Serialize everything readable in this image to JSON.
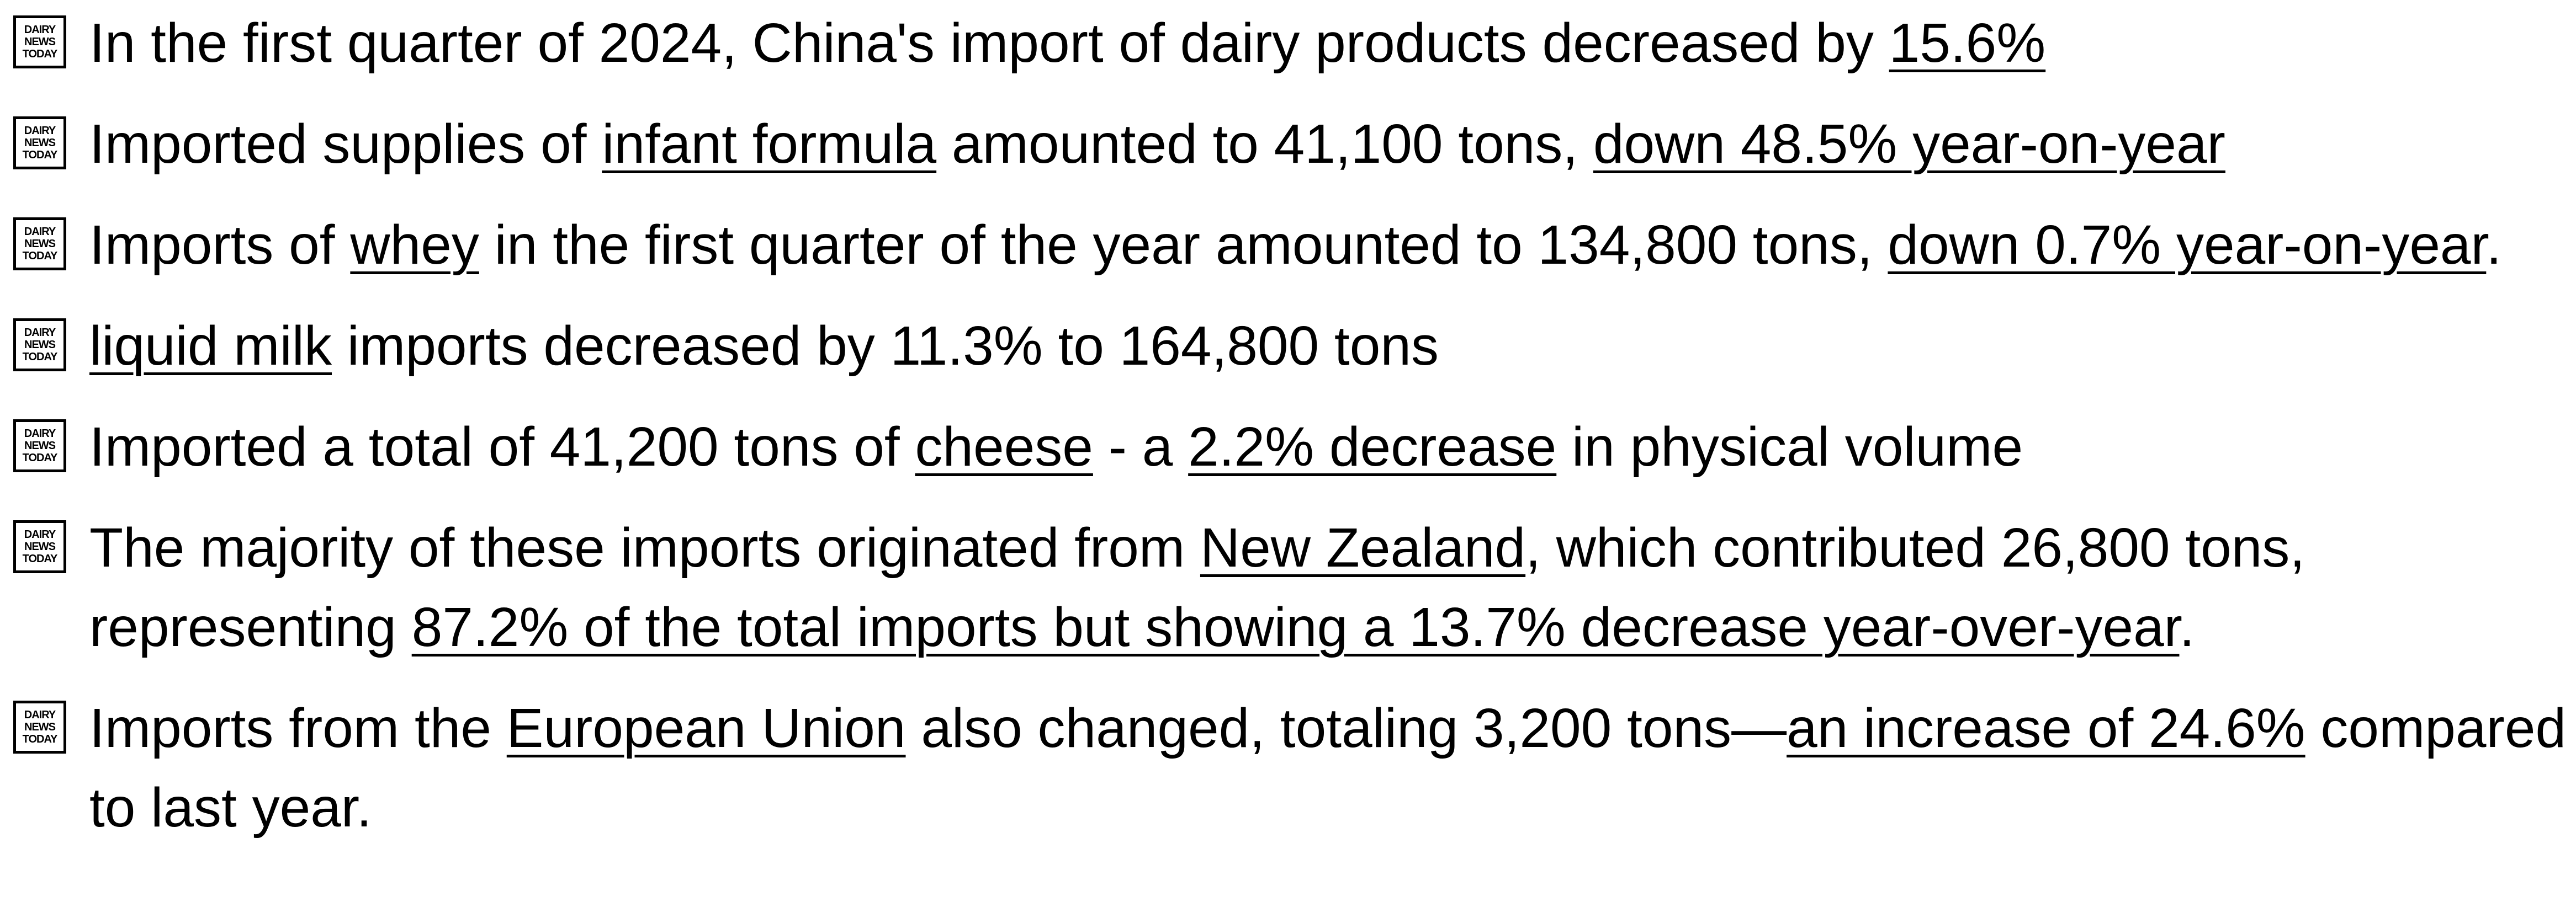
{
  "icon_text": [
    "DAIRY",
    "NEWS",
    "TODAY"
  ],
  "items": [
    {
      "segments": [
        {
          "text": "In the first quarter of 2024, China's import of dairy products decreased by ",
          "underline": false
        },
        {
          "text": "15.6%",
          "underline": true
        }
      ]
    },
    {
      "segments": [
        {
          "text": "Imported supplies of ",
          "underline": false
        },
        {
          "text": "infant formula",
          "underline": true
        },
        {
          "text": " amounted to 41,100 tons, ",
          "underline": false
        },
        {
          "text": "down 48.5% year-on-year",
          "underline": true
        }
      ]
    },
    {
      "segments": [
        {
          "text": "Imports of ",
          "underline": false
        },
        {
          "text": "whey",
          "underline": true
        },
        {
          "text": " in the first quarter of the year amounted to 134,800 tons, ",
          "underline": false
        },
        {
          "text": "down 0.7% year-on-year",
          "underline": true
        },
        {
          "text": ".",
          "underline": false
        }
      ]
    },
    {
      "segments": [
        {
          "text": "liquid milk",
          "underline": true
        },
        {
          "text": " imports decreased by 11.3% to 164,800 tons",
          "underline": false
        }
      ]
    },
    {
      "segments": [
        {
          "text": "Imported a total of 41,200 tons of ",
          "underline": false
        },
        {
          "text": "cheese",
          "underline": true
        },
        {
          "text": " - a ",
          "underline": false
        },
        {
          "text": "2.2% decrease",
          "underline": true
        },
        {
          "text": " in physical volume",
          "underline": false
        }
      ]
    },
    {
      "segments": [
        {
          "text": "The majority of these imports originated from ",
          "underline": false
        },
        {
          "text": "New Zealand",
          "underline": true
        },
        {
          "text": ", which contributed 26,800 tons, representing ",
          "underline": false
        },
        {
          "text": "87.2% of the total imports but showing a 13.7% decrease year-over-year",
          "underline": true
        },
        {
          "text": ".",
          "underline": false
        }
      ]
    },
    {
      "segments": [
        {
          "text": "Imports from the ",
          "underline": false
        },
        {
          "text": "European Union",
          "underline": true
        },
        {
          "text": " also changed, totaling 3,200 tons—",
          "underline": false
        },
        {
          "text": "an increase of 24.6%",
          "underline": true
        },
        {
          "text": " compared to last year.",
          "underline": false
        }
      ]
    }
  ]
}
